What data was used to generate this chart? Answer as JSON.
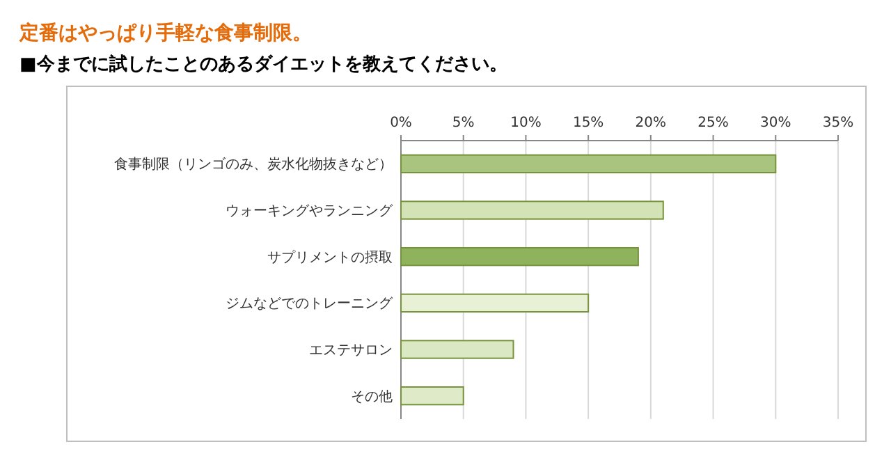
{
  "chart_data": {
    "type": "bar",
    "orientation": "horizontal",
    "title": "定番はやっぱり手軽な食事制限。",
    "subtitle": "■今までに試したことのあるダイエットを教えてください。",
    "categories": [
      "食事制限（リンゴのみ、炭水化物抜きなど）",
      "ウォーキングやランニング",
      "サプリメントの摂取",
      "ジムなどでのトレーニング",
      "エステサロン",
      "その他"
    ],
    "values": [
      30,
      21,
      19,
      15,
      9,
      5
    ],
    "colors": [
      "#a9c47f",
      "#d4e3b5",
      "#8fb25c",
      "#e8f0d5",
      "#dbe8c4",
      "#dfeac8"
    ],
    "xlim": [
      0,
      35
    ],
    "xticks": [
      {
        "value": 0,
        "label": "0%"
      },
      {
        "value": 5,
        "label": "5%"
      },
      {
        "value": 10,
        "label": "10%"
      },
      {
        "value": 15,
        "label": "15%"
      },
      {
        "value": 20,
        "label": "20%"
      },
      {
        "value": 25,
        "label": "25%"
      },
      {
        "value": 30,
        "label": "30%"
      },
      {
        "value": 35,
        "label": "35%"
      }
    ],
    "grid": "x"
  }
}
